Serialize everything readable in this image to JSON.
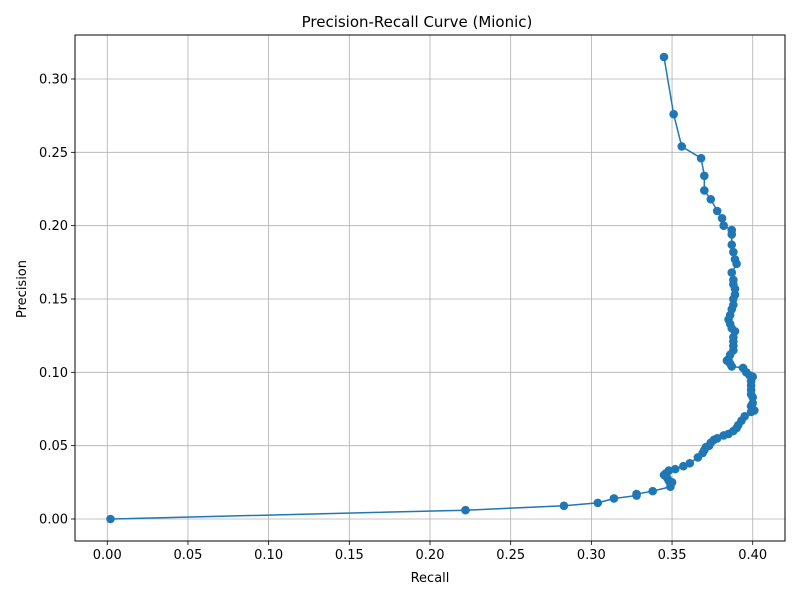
{
  "chart_data": {
    "type": "line",
    "title": "Precision-Recall Curve (Mionic)",
    "xlabel": "Recall",
    "ylabel": "Precision",
    "xlim": [
      -0.02,
      0.42
    ],
    "ylim": [
      -0.015,
      0.33
    ],
    "xticks": [
      0.0,
      0.05,
      0.1,
      0.15,
      0.2,
      0.25,
      0.3,
      0.35,
      0.4
    ],
    "xtick_labels": [
      "0.00",
      "0.05",
      "0.10",
      "0.15",
      "0.20",
      "0.25",
      "0.30",
      "0.35",
      "0.40"
    ],
    "yticks": [
      0.0,
      0.05,
      0.1,
      0.15,
      0.2,
      0.25,
      0.3
    ],
    "ytick_labels": [
      "0.00",
      "0.05",
      "0.10",
      "0.15",
      "0.20",
      "0.25",
      "0.30"
    ],
    "grid": true,
    "colors": {
      "series": "#1f77b4",
      "grid": "#b0b0b0",
      "axis": "#000000"
    },
    "series": [
      {
        "marker": "circle",
        "x": [
          0.345,
          0.351,
          0.356,
          0.368,
          0.37,
          0.37,
          0.374,
          0.378,
          0.381,
          0.382,
          0.387,
          0.387,
          0.387,
          0.388,
          0.389,
          0.39,
          0.387,
          0.388,
          0.388,
          0.389,
          0.389,
          0.388,
          0.388,
          0.387,
          0.386,
          0.385,
          0.386,
          0.387,
          0.389,
          0.388,
          0.388,
          0.388,
          0.388,
          0.386,
          0.385,
          0.384,
          0.386,
          0.387,
          0.394,
          0.396,
          0.398,
          0.4,
          0.399,
          0.399,
          0.399,
          0.399,
          0.4,
          0.4,
          0.399,
          0.401,
          0.399,
          0.395,
          0.393,
          0.391,
          0.39,
          0.388,
          0.385,
          0.382,
          0.378,
          0.376,
          0.374,
          0.373,
          0.371,
          0.37,
          0.369,
          0.366,
          0.361,
          0.357,
          0.352,
          0.348,
          0.346,
          0.345,
          0.347,
          0.348,
          0.349,
          0.35,
          0.349,
          0.338,
          0.328,
          0.328,
          0.314,
          0.304,
          0.283,
          0.222,
          0.002
        ],
        "y": [
          0.315,
          0.276,
          0.254,
          0.246,
          0.234,
          0.224,
          0.218,
          0.21,
          0.205,
          0.2,
          0.197,
          0.194,
          0.187,
          0.182,
          0.177,
          0.174,
          0.168,
          0.163,
          0.16,
          0.157,
          0.153,
          0.15,
          0.146,
          0.143,
          0.139,
          0.136,
          0.133,
          0.13,
          0.128,
          0.124,
          0.121,
          0.118,
          0.115,
          0.112,
          0.109,
          0.108,
          0.106,
          0.104,
          0.103,
          0.1,
          0.098,
          0.097,
          0.094,
          0.091,
          0.088,
          0.085,
          0.083,
          0.079,
          0.077,
          0.074,
          0.073,
          0.07,
          0.067,
          0.064,
          0.062,
          0.06,
          0.058,
          0.057,
          0.055,
          0.054,
          0.052,
          0.05,
          0.049,
          0.047,
          0.045,
          0.042,
          0.038,
          0.036,
          0.034,
          0.033,
          0.031,
          0.03,
          0.028,
          0.026,
          0.024,
          0.025,
          0.022,
          0.019,
          0.017,
          0.016,
          0.014,
          0.011,
          0.009,
          0.006,
          0.0
        ]
      }
    ]
  }
}
